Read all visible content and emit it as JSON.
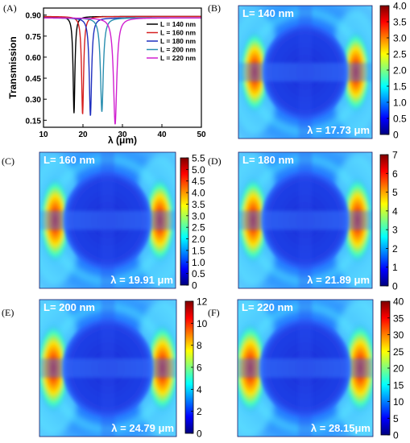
{
  "chart_data": [
    {
      "panel": "(A)",
      "type": "line",
      "xlabel": "λ (μm)",
      "ylabel": "Transmission",
      "xlim": [
        10,
        50
      ],
      "ylim": [
        0.1,
        0.95
      ],
      "xticks": [
        "10",
        "20",
        "30",
        "40",
        "50"
      ],
      "yticks": [
        "0.90",
        "0.75",
        "0.60",
        "0.45",
        "0.30",
        "0.15"
      ],
      "legend_position": "right",
      "series": [
        {
          "name": "L = 140 nm",
          "color": "#000000",
          "baseline": 0.89,
          "dip_x": 17.73,
          "dip_y": 0.2,
          "width": 0.55
        },
        {
          "name": "L = 160 nm",
          "color": "#d62020",
          "baseline": 0.89,
          "dip_x": 19.91,
          "dip_y": 0.19,
          "width": 0.62
        },
        {
          "name": "L = 180 nm",
          "color": "#1f2fbf",
          "baseline": 0.88,
          "dip_x": 21.89,
          "dip_y": 0.18,
          "width": 0.72
        },
        {
          "name": "L = 200 nm",
          "color": "#2a8fb0",
          "baseline": 0.88,
          "dip_x": 24.79,
          "dip_y": 0.21,
          "width": 0.85
        },
        {
          "name": "L = 220 nm",
          "color": "#d020d0",
          "baseline": 0.88,
          "dip_x": 28.15,
          "dip_y": 0.12,
          "width": 1.0
        }
      ]
    },
    {
      "panel": "(B)",
      "type": "heatmap",
      "label": "L= 140 nm",
      "wavelength": "λ = 17.73 μm",
      "colorbar_range": [
        0,
        4.0
      ],
      "colorbar_ticks": [
        "4.0",
        "3.5",
        "3.0",
        "2.5",
        "2.0",
        "1.5",
        "1.0",
        "0.5",
        "0"
      ],
      "intensity": 0.6
    },
    {
      "panel": "(C)",
      "type": "heatmap",
      "label": "L= 160 nm",
      "wavelength": "λ = 19.91 μm",
      "colorbar_range": [
        0,
        5.5
      ],
      "colorbar_ticks": [
        "5.5",
        "5.0",
        "4.5",
        "4.0",
        "3.5",
        "3.0",
        "2.5",
        "2.0",
        "1.5",
        "1.0",
        "0.5",
        "0"
      ],
      "intensity": 0.68
    },
    {
      "panel": "(D)",
      "type": "heatmap",
      "label": "L= 180 nm",
      "wavelength": "λ = 21.89 μm",
      "colorbar_range": [
        0,
        7
      ],
      "colorbar_ticks": [
        "7",
        "6",
        "5",
        "4",
        "3",
        "2",
        "1",
        "0"
      ],
      "intensity": 0.75
    },
    {
      "panel": "(E)",
      "type": "heatmap",
      "label": "L= 200 nm",
      "wavelength": "λ = 24.79 μm",
      "colorbar_range": [
        0,
        12
      ],
      "colorbar_ticks": [
        "12",
        "10",
        "8",
        "6",
        "4",
        "2",
        "0"
      ],
      "intensity": 0.85
    },
    {
      "panel": "(F)",
      "type": "heatmap",
      "label": "L= 220 nm",
      "wavelength": "λ = 28.15μm",
      "colorbar_range": [
        0,
        40
      ],
      "colorbar_ticks": [
        "40",
        "35",
        "30",
        "25",
        "20",
        "15",
        "10",
        "5",
        "0"
      ],
      "intensity": 0.95
    }
  ]
}
